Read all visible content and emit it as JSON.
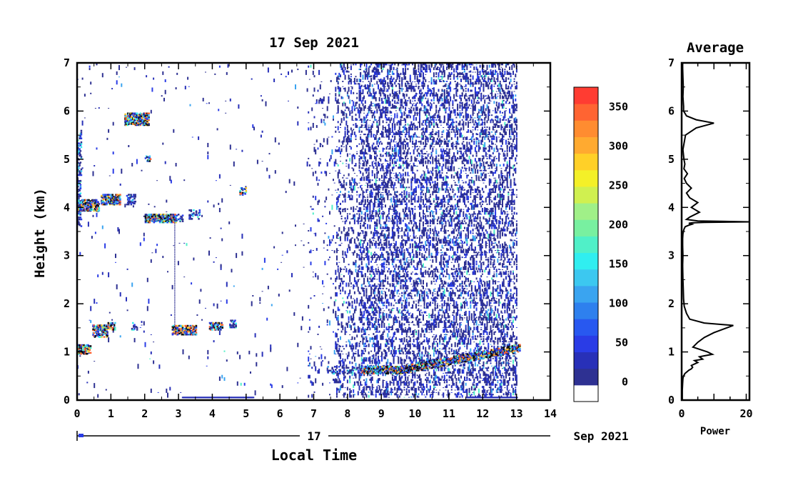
{
  "figure": {
    "title": "17 Sep 2021",
    "xlabel": "Local Time",
    "ylabel": "Height (km)",
    "date_day": "17",
    "date_suffix": "Sep 2021"
  },
  "chart_data": [
    {
      "type": "heatmap",
      "title": "17 Sep 2021",
      "xlabel": "Local Time",
      "ylabel": "Height (km)",
      "xlim": [
        0,
        14
      ],
      "ylim": [
        0,
        7
      ],
      "x_ticks": [
        "0",
        "1",
        "2",
        "3",
        "4",
        "5",
        "6",
        "7",
        "8",
        "9",
        "10",
        "11",
        "12",
        "13",
        "14"
      ],
      "y_ticks": [
        "0",
        "1",
        "2",
        "3",
        "4",
        "5",
        "6",
        "7"
      ],
      "data_extent_x": [
        0,
        13
      ],
      "colorbar": {
        "ticks": [
          "0",
          "50",
          "100",
          "150",
          "200",
          "250",
          "300",
          "350"
        ],
        "range": [
          -25,
          375
        ],
        "colors": [
          "#ffffff",
          "#2e3192",
          "#2830b8",
          "#2a3ce6",
          "#2858f0",
          "#2e80ee",
          "#3aa4f0",
          "#3cc8f0",
          "#30eef0",
          "#50f0c8",
          "#78f0a0",
          "#a0f088",
          "#d0f050",
          "#f4f028",
          "#ffd028",
          "#ffaa30",
          "#ff8c30",
          "#ff6432",
          "#ff3c32"
        ]
      },
      "features": [
        {
          "name": "cloud layer near 5.8 km",
          "x": [
            1.4,
            2.1
          ],
          "y": [
            5.72,
            5.88
          ]
        },
        {
          "name": "cloud layer near 4 km",
          "x": [
            0.0,
            1.2
          ],
          "y": [
            3.95,
            4.2
          ]
        },
        {
          "name": "cloud layer near 3.75 km",
          "x": [
            2.0,
            2.9
          ],
          "y": [
            3.72,
            3.82
          ]
        },
        {
          "name": "boundary layer top",
          "x": [
            0.0,
            13.0
          ],
          "y": [
            0.55,
            1.55
          ]
        }
      ]
    },
    {
      "type": "line",
      "title": "Average",
      "xlabel": "Power",
      "ylabel": "",
      "xlim": [
        0,
        21
      ],
      "ylim": [
        0,
        7
      ],
      "x_ticks": [
        "0",
        "20"
      ],
      "y_ticks": [
        "0",
        "1",
        "2",
        "3",
        "4",
        "5",
        "6",
        "7"
      ],
      "series": [
        {
          "values_x": [
            0.2,
            0.2,
            0.3,
            0.4,
            0.6,
            1.0,
            2.2,
            3.0,
            3.4,
            3.0,
            5.0,
            4.0,
            6.5,
            5.5,
            9.5,
            8.0,
            3.5,
            5.0,
            7.0,
            10.0,
            16.0,
            7.0,
            2.5,
            1.5,
            0.8,
            0.6,
            0.5,
            0.4,
            0.3,
            0.4,
            0.3,
            0.3,
            0.4,
            0.6,
            0.8,
            1.1,
            2.2,
            3.2,
            2.2,
            3.2,
            7.0,
            21.0,
            5.0,
            1.5,
            2.5,
            5.5,
            3.0,
            5.0,
            2.5,
            1.5,
            3.0,
            1.5,
            0.8,
            1.8,
            0.7,
            1.0,
            0.7,
            0.4,
            1.2,
            4.5,
            10.0,
            4.5,
            1.5,
            0.6,
            0.6,
            0.4,
            0.5,
            0.4,
            0.3,
            0.3
          ],
          "y": [
            0.0,
            0.2,
            0.35,
            0.45,
            0.5,
            0.55,
            0.62,
            0.65,
            0.68,
            0.72,
            0.78,
            0.82,
            0.85,
            0.9,
            0.95,
            1.0,
            1.1,
            1.2,
            1.3,
            1.4,
            1.55,
            1.6,
            1.68,
            1.8,
            1.95,
            2.1,
            2.3,
            2.5,
            2.8,
            3.0,
            3.2,
            3.35,
            3.45,
            3.52,
            3.56,
            3.6,
            3.63,
            3.65,
            3.67,
            3.68,
            3.69,
            3.7,
            3.72,
            3.75,
            3.8,
            3.9,
            4.0,
            4.1,
            4.2,
            4.3,
            4.4,
            4.5,
            4.6,
            4.7,
            4.8,
            4.9,
            5.0,
            5.2,
            5.5,
            5.65,
            5.75,
            5.82,
            5.9,
            6.0,
            6.1,
            6.3,
            6.5,
            6.7,
            6.9,
            7.0
          ]
        }
      ]
    }
  ]
}
